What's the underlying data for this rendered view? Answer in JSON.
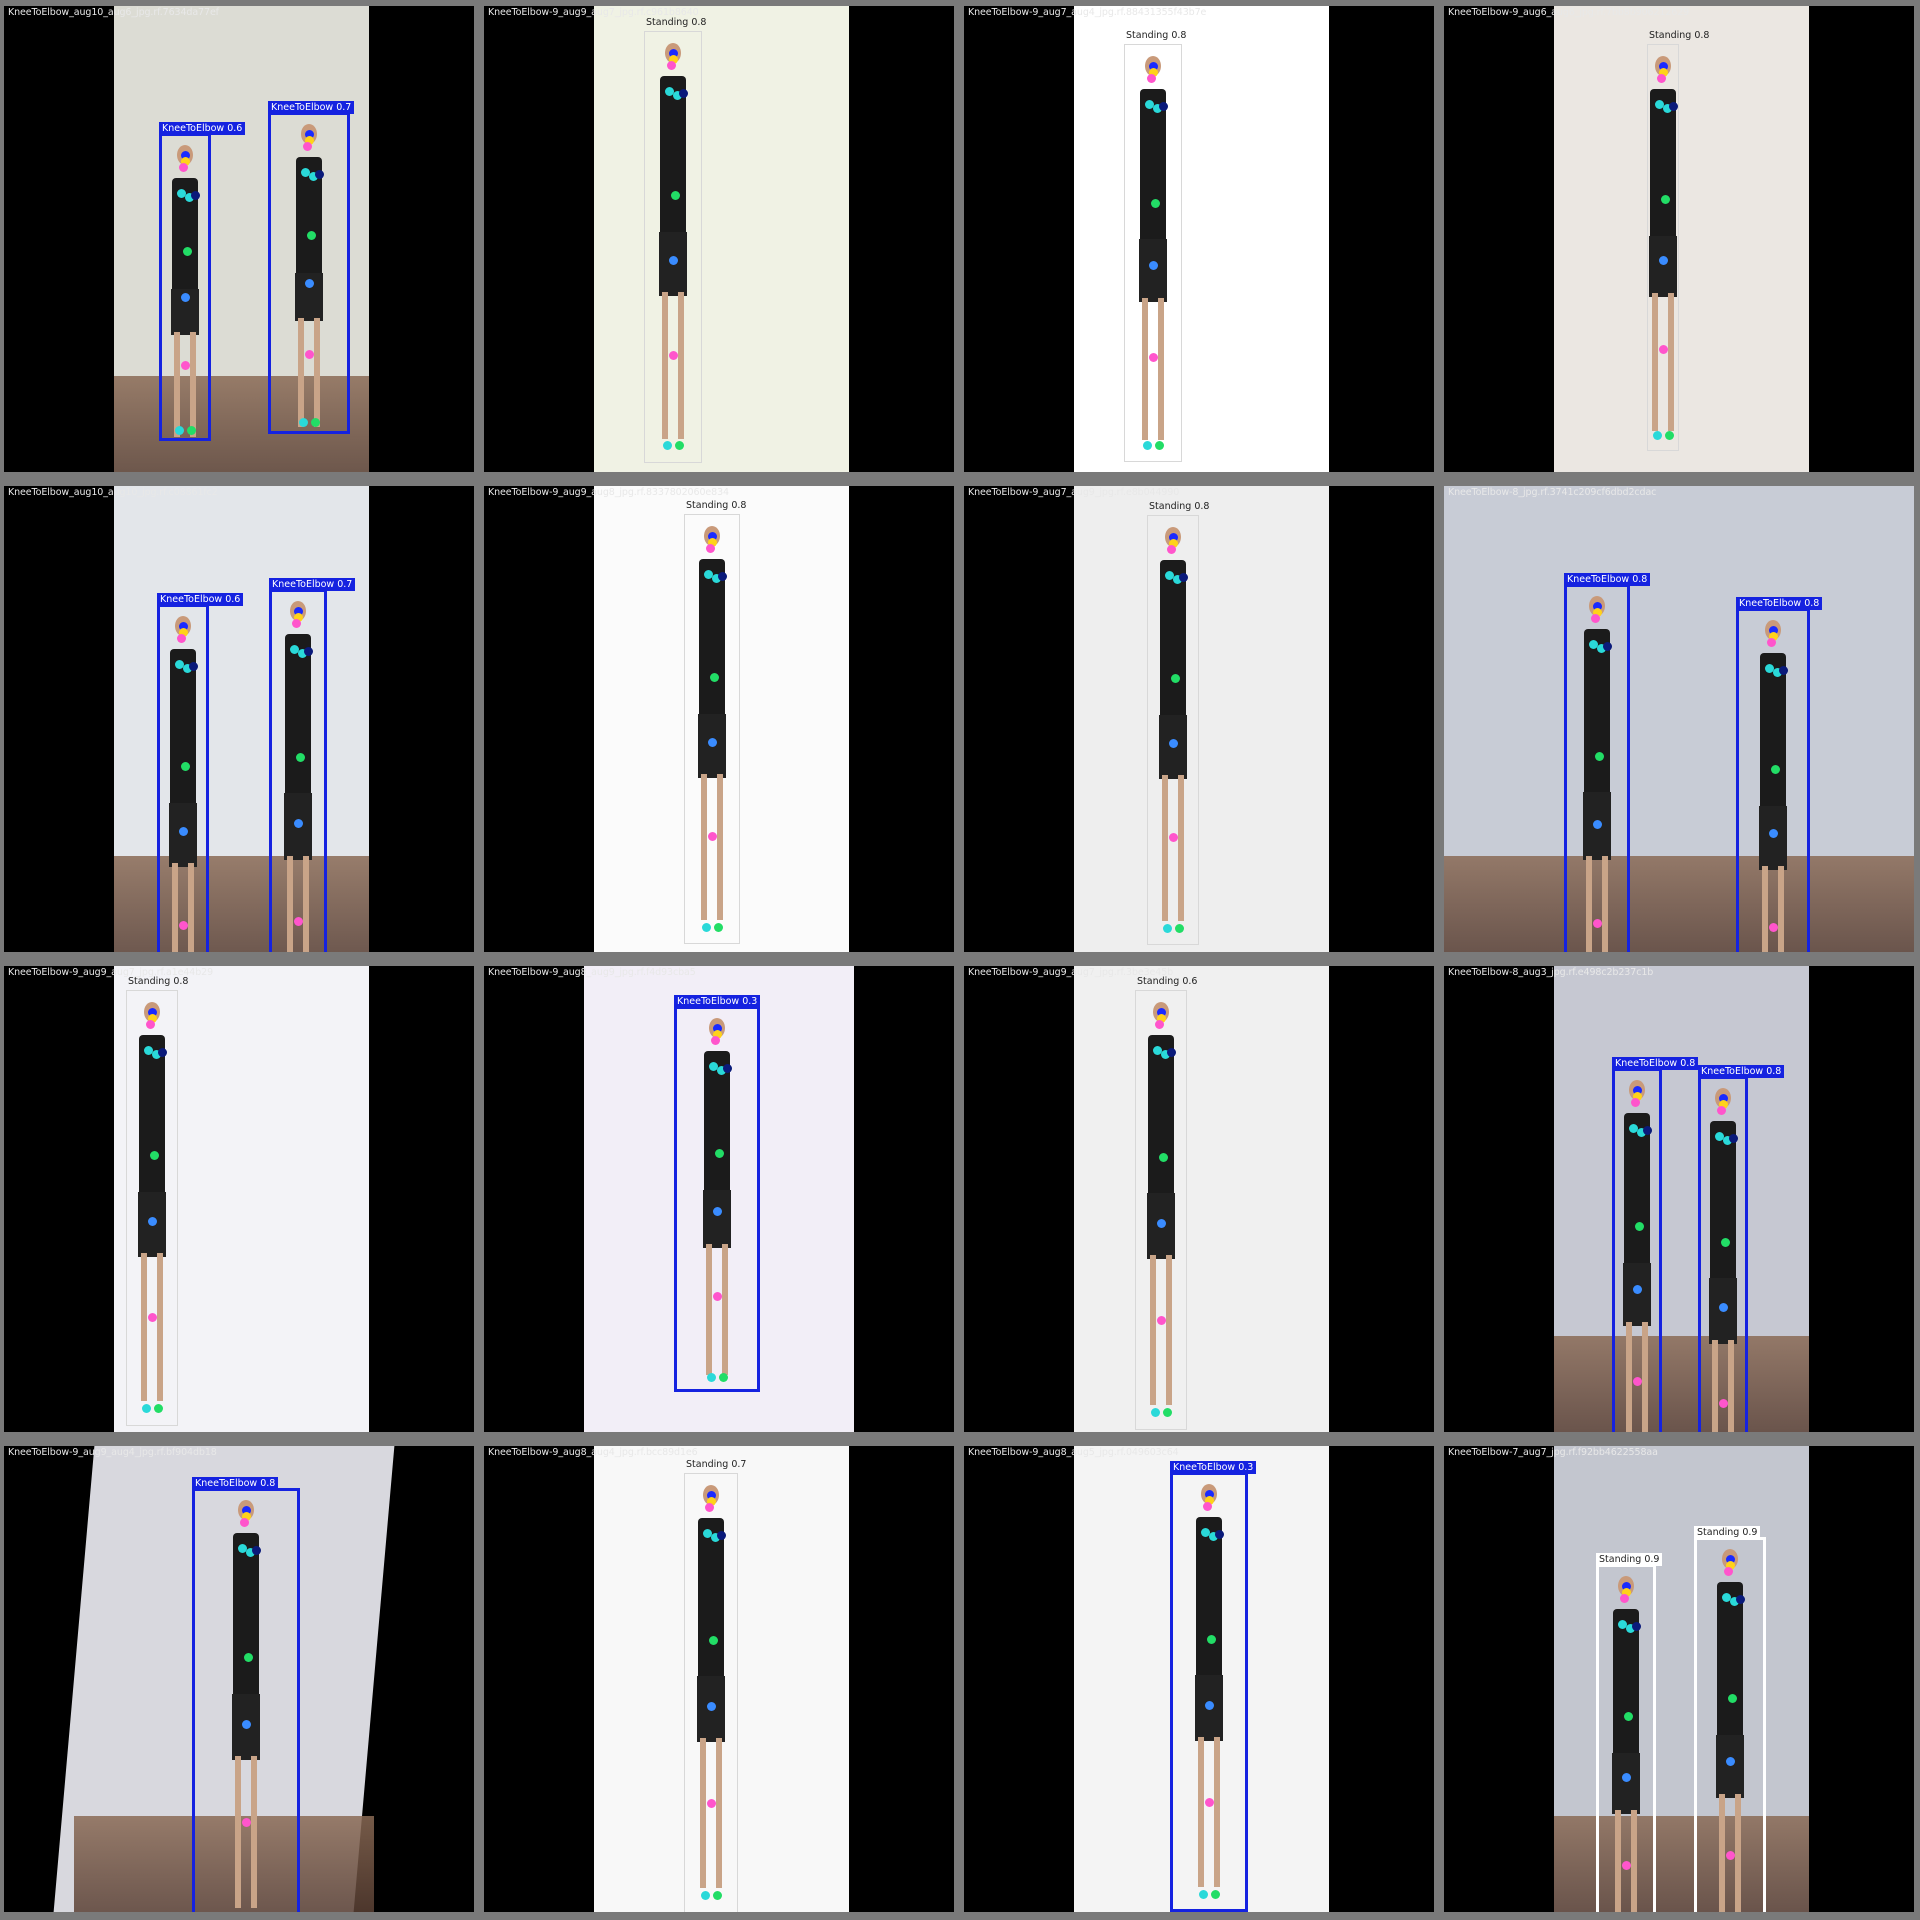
{
  "grid": {
    "tiles": [
      {
        "filename": "KneeToElbow_aug10_aug6_jpg.rf.7634da77ef",
        "photo_bg": "#dcdcd4",
        "boxes": [
          {
            "label": "KneeToElbow 0.6",
            "kind": "blue"
          },
          {
            "label": "KneeToElbow 0.7",
            "kind": "blue"
          }
        ]
      },
      {
        "filename": "KneeToElbow-9_aug9_aug7_jpg.rf.c961b8640",
        "photo_bg": "#f0f2e4",
        "boxes": [
          {
            "label": "Standing 0.8",
            "kind": "standing"
          }
        ]
      },
      {
        "filename": "KneeToElbow-9_aug7_aug4_jpg.rf.88431355f43b7e",
        "photo_bg": "#ffffff",
        "boxes": [
          {
            "label": "Standing 0.8",
            "kind": "standing"
          }
        ]
      },
      {
        "filename": "KneeToElbow-9_aug6_aug6_jpg.rf.7bb8b906212629",
        "photo_bg": "#ebe7e2",
        "boxes": [
          {
            "label": "Standing 0.8",
            "kind": "standing"
          }
        ]
      },
      {
        "filename": "KneeToElbow_aug10_aug10_jpg.rf.c08861fc2",
        "photo_bg": "#e3e6ea",
        "boxes": [
          {
            "label": "KneeToElbow 0.6",
            "kind": "blue"
          },
          {
            "label": "KneeToElbow 0.7",
            "kind": "blue"
          }
        ]
      },
      {
        "filename": "KneeToElbow-9_aug9_aug8_jpg.rf.8337802060e834",
        "photo_bg": "#fbfbfb",
        "boxes": [
          {
            "label": "Standing 0.8",
            "kind": "standing"
          }
        ]
      },
      {
        "filename": "KneeToElbow-9_aug7_aug9_jpg.rf.e8b044990",
        "photo_bg": "#eeeeee",
        "boxes": [
          {
            "label": "Standing 0.8",
            "kind": "standing"
          }
        ]
      },
      {
        "filename": "KneeToElbow-8_jpg.rf.3741c209cf6dbd2cdac",
        "photo_bg": "#c8ccd6",
        "boxes": [
          {
            "label": "KneeToElbow 0.8",
            "kind": "blue"
          },
          {
            "label": "KneeToElbow 0.8",
            "kind": "blue"
          }
        ]
      },
      {
        "filename": "KneeToElbow-9_aug9_aug7_jpg.rf.a1e44b29",
        "photo_bg": "#f3f3f7",
        "boxes": [
          {
            "label": "Standing 0.8",
            "kind": "standing"
          }
        ]
      },
      {
        "filename": "KneeToElbow-9_aug8_aug9_jpg.rf.f4d93cba5",
        "photo_bg": "#f2eef7",
        "boxes": [
          {
            "label": "KneeToElbow 0.3",
            "kind": "blue"
          }
        ]
      },
      {
        "filename": "KneeToElbow-9_aug9_aug7_jpg.rf.3be3e45b",
        "photo_bg": "#f0f0f0",
        "boxes": [
          {
            "label": "Standing 0.6",
            "kind": "standing"
          }
        ]
      },
      {
        "filename": "KneeToElbow-8_aug3_jpg.rf.e498c2b237c1b",
        "photo_bg": "#c6c8d2",
        "boxes": [
          {
            "label": "KneeToElbow 0.8",
            "kind": "blue"
          },
          {
            "label": "KneeToElbow 0.8",
            "kind": "blue"
          }
        ]
      },
      {
        "filename": "KneeToElbow-9_aug9_aug4_jpg.rf.bf904db18",
        "photo_bg": "#d8d8de",
        "boxes": [
          {
            "label": "KneeToElbow 0.8",
            "kind": "blue"
          }
        ]
      },
      {
        "filename": "KneeToElbow-9_aug8_aug4_jpg.rf.bcc89d1e6",
        "photo_bg": "#f8f8f8",
        "boxes": [
          {
            "label": "Standing 0.7",
            "kind": "standing"
          }
        ]
      },
      {
        "filename": "KneeToElbow-9_aug8_aug5_jpg.rf.049603c64",
        "photo_bg": "#f4f4f4",
        "boxes": [
          {
            "label": "KneeToElbow 0.3",
            "kind": "blue"
          }
        ]
      },
      {
        "filename": "KneeToElbow-7_aug7_jpg.rf.f92bb4622558aa",
        "photo_bg": "#c3c6cf",
        "boxes": [
          {
            "label": "Standing 0.9",
            "kind": "white"
          },
          {
            "label": "Standing 0.9",
            "kind": "white"
          }
        ]
      }
    ]
  },
  "colors": {
    "box": "#1522e0",
    "keypoints": [
      "#1a2aff",
      "#ffd21a",
      "#2ad9d9",
      "#22dd66",
      "#ff55cc",
      "#3a8cff",
      "#0a1a7a"
    ]
  }
}
